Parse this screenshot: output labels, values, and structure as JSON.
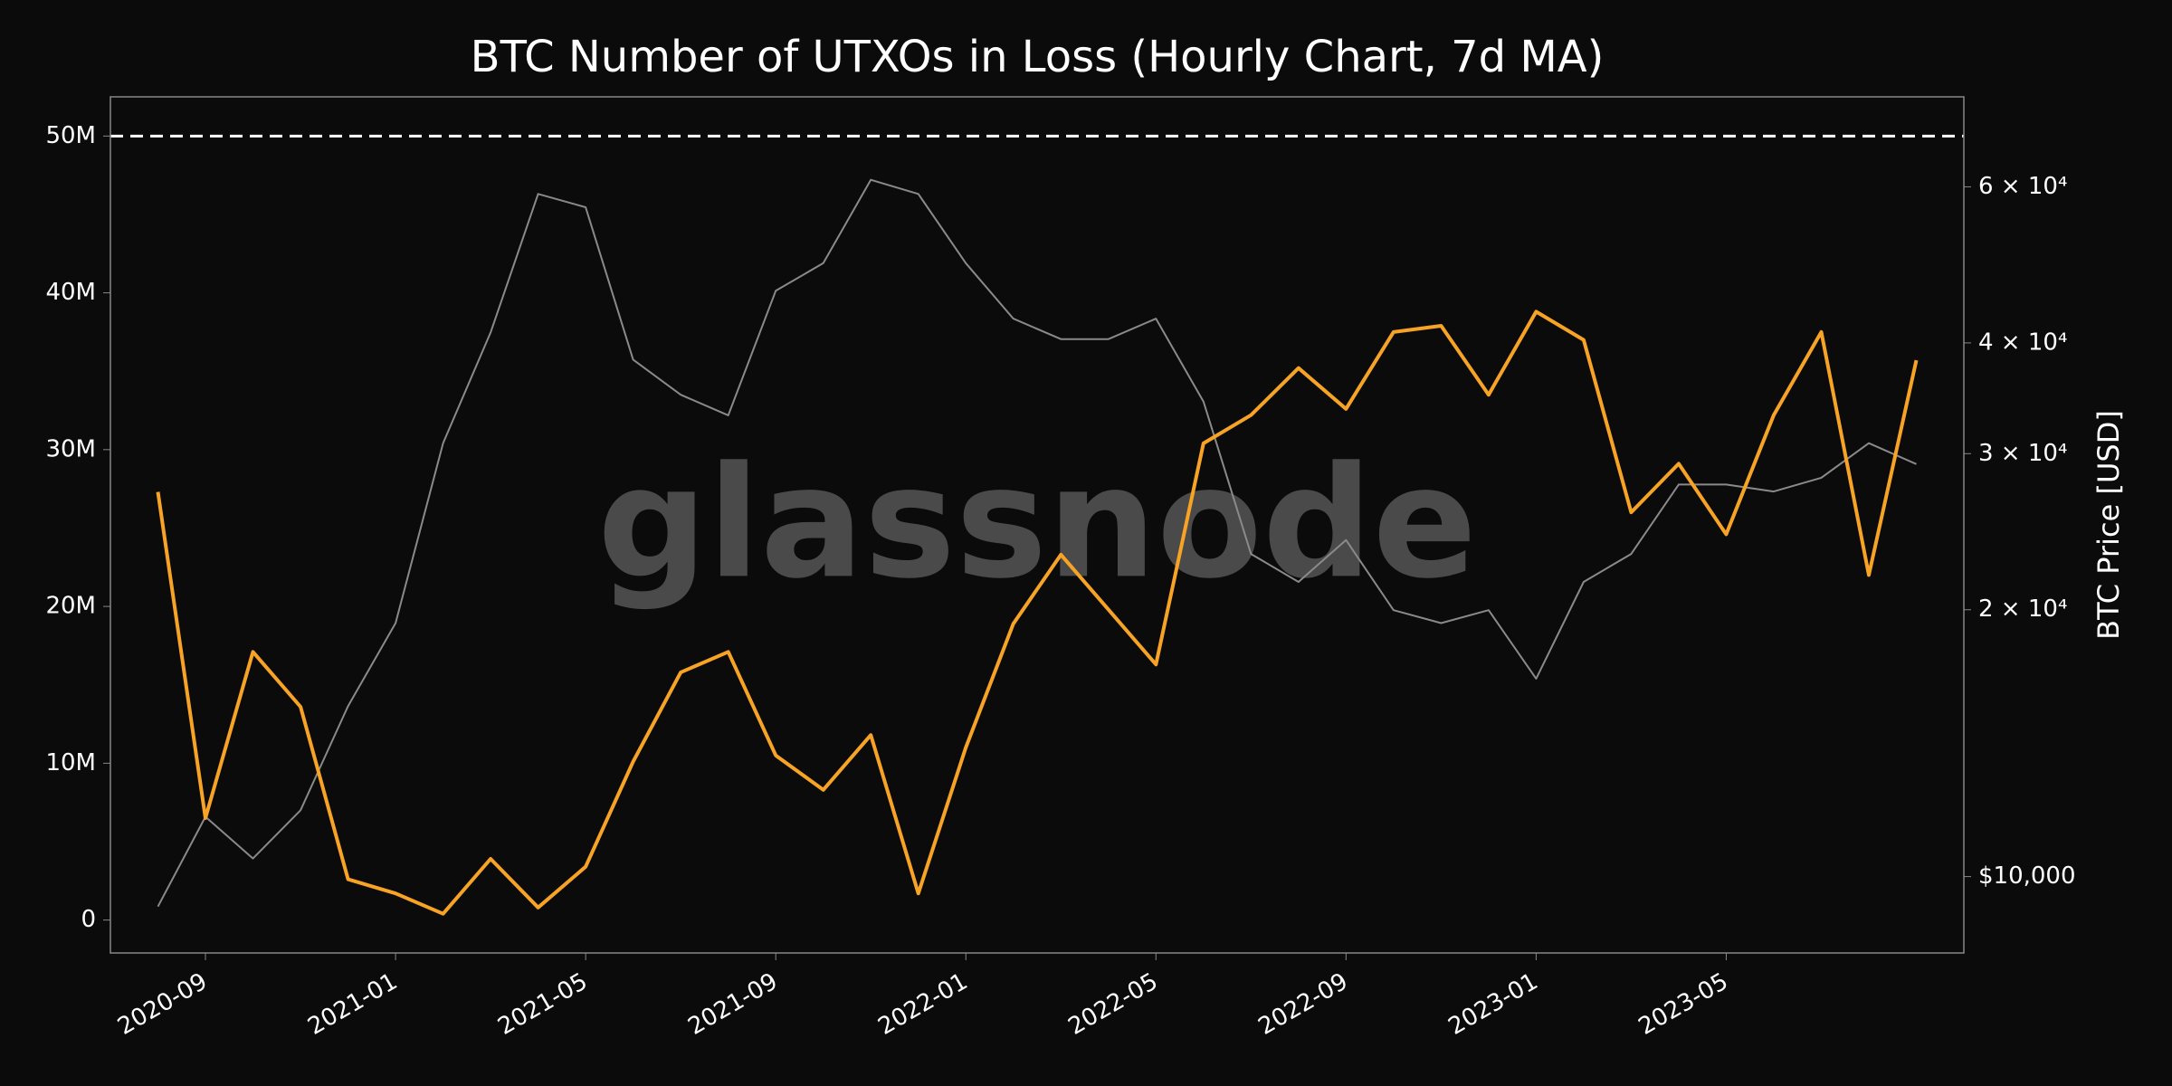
{
  "chart_data": {
    "type": "line",
    "title": "BTC Number of UTXOs in Loss (Hourly Chart, 7d MA)",
    "y2_label": "BTC Price [USD]",
    "watermark": "glassnode",
    "x": [
      "2020-08",
      "2020-09",
      "2020-10",
      "2020-11",
      "2020-12",
      "2021-01",
      "2021-02",
      "2021-03",
      "2021-04",
      "2021-05",
      "2021-06",
      "2021-07",
      "2021-08",
      "2021-09",
      "2021-10",
      "2021-11",
      "2021-12",
      "2022-01",
      "2022-02",
      "2022-03",
      "2022-04",
      "2022-05",
      "2022-06",
      "2022-07",
      "2022-08",
      "2022-09",
      "2022-10",
      "2022-11",
      "2022-12",
      "2023-01",
      "2023-02",
      "2023-03",
      "2023-04",
      "2023-05",
      "2023-06",
      "2023-07",
      "2023-08",
      "2023-09"
    ],
    "series": [
      {
        "name": "UTXOs in Loss",
        "color": "#f7a325",
        "axis": "y",
        "values": [
          27300000,
          6500000,
          17100000,
          13600000,
          2600000,
          1700000,
          400000,
          3900000,
          800000,
          3400000,
          10100000,
          15800000,
          17100000,
          10500000,
          8300000,
          11800000,
          1700000,
          11000000,
          18900000,
          23300000,
          19800000,
          16300000,
          30400000,
          32200000,
          35200000,
          32600000,
          37500000,
          37900000,
          33500000,
          38800000,
          37000000,
          26000000,
          29100000,
          24600000,
          32200000,
          37500000,
          22000000,
          35700000
        ]
      },
      {
        "name": "BTC Price",
        "color": "#8a8a8a",
        "axis": "y2",
        "values": [
          9250,
          11680,
          10480,
          11880,
          15570,
          19320,
          30830,
          41100,
          58900,
          56900,
          38300,
          34960,
          33140,
          45800,
          49200,
          61100,
          58900,
          49200,
          42600,
          40400,
          40400,
          42600,
          34350,
          23120,
          21500,
          23970,
          19980,
          19320,
          19980,
          16720,
          21500,
          23120,
          27690,
          27690,
          27190,
          28180,
          30830,
          29200
        ]
      }
    ],
    "hline": 50000000,
    "xlim": [
      "2020-07",
      "2023-10"
    ],
    "xticks": [
      "2020-09",
      "2021-01",
      "2021-05",
      "2021-09",
      "2022-01",
      "2022-05",
      "2022-09",
      "2023-01",
      "2023-05"
    ],
    "ylim": [
      -2100000,
      52500000
    ],
    "yticks": [
      {
        "value": 0,
        "label": "0"
      },
      {
        "value": 10000000,
        "label": "10M"
      },
      {
        "value": 20000000,
        "label": "20M"
      },
      {
        "value": 30000000,
        "label": "30M"
      },
      {
        "value": 40000000,
        "label": "40M"
      },
      {
        "value": 50000000,
        "label": "50M"
      }
    ],
    "y2lim": [
      8200,
      75800
    ],
    "y2scale": "log",
    "y2ticks": [
      {
        "value": 10000,
        "label": "$10,000"
      },
      {
        "value": 20000,
        "label": "2 × 10⁴"
      },
      {
        "value": 30000,
        "label": "3 × 10⁴"
      },
      {
        "value": 40000,
        "label": "4 × 10⁴"
      },
      {
        "value": 60000,
        "label": "6 × 10⁴"
      }
    ]
  }
}
